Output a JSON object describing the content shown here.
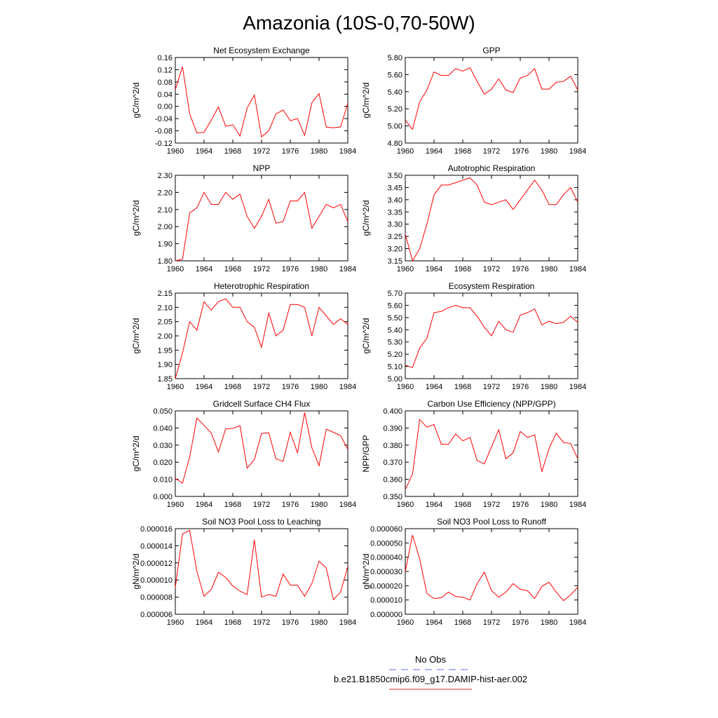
{
  "title": "Amazonia (10S-0,70-50W)",
  "legend": {
    "entries": [
      {
        "label": "No Obs",
        "color": "#6464ff",
        "dash": true
      },
      {
        "label": "b.e21.B1850cmip6.f09_g17.DAMIP-hist-aer.002",
        "color": "#e03030",
        "dash": false
      }
    ]
  },
  "chart_data": [
    {
      "type": "line",
      "title": "Net Ecosystem Exchange",
      "ylabel": "gC/m^2/d",
      "xlabel": "",
      "ylim": [
        -0.12,
        0.16
      ],
      "yticks": [
        -0.12,
        -0.08,
        -0.04,
        0.0,
        0.04,
        0.08,
        0.12,
        0.16
      ],
      "ytick_labels": [
        "-0.12",
        "-0.08",
        "-0.04",
        "0.00",
        "0.04",
        "0.08",
        "0.12",
        "0.16"
      ],
      "xlim": [
        1960,
        1984
      ],
      "xticks": [
        1960,
        1964,
        1968,
        1972,
        1976,
        1980,
        1984
      ],
      "x": [
        1960,
        1961,
        1962,
        1963,
        1964,
        1965,
        1966,
        1967,
        1968,
        1969,
        1970,
        1971,
        1972,
        1973,
        1974,
        1975,
        1976,
        1977,
        1978,
        1979,
        1980,
        1981,
        1982,
        1983,
        1984
      ],
      "series": [
        {
          "color": "#ff0000",
          "values": [
            0.055,
            0.13,
            -0.025,
            -0.087,
            -0.085,
            -0.045,
            -0.002,
            -0.065,
            -0.06,
            -0.097,
            -0.005,
            0.037,
            -0.1,
            -0.08,
            -0.025,
            -0.012,
            -0.047,
            -0.04,
            -0.095,
            0.012,
            0.042,
            -0.068,
            -0.07,
            -0.067,
            0.01
          ]
        }
      ]
    },
    {
      "type": "line",
      "title": "GPP",
      "ylabel": "gC/m^2/d",
      "xlabel": "",
      "ylim": [
        4.8,
        5.8
      ],
      "yticks": [
        4.8,
        5.0,
        5.2,
        5.4,
        5.6,
        5.8
      ],
      "ytick_labels": [
        "4.80",
        "5.00",
        "5.20",
        "5.40",
        "5.60",
        "5.80"
      ],
      "xlim": [
        1960,
        1984
      ],
      "xticks": [
        1960,
        1964,
        1968,
        1972,
        1976,
        1980,
        1984
      ],
      "x": [
        1960,
        1961,
        1962,
        1963,
        1964,
        1965,
        1966,
        1967,
        1968,
        1969,
        1970,
        1971,
        1972,
        1973,
        1974,
        1975,
        1976,
        1977,
        1978,
        1979,
        1980,
        1981,
        1982,
        1983,
        1984
      ],
      "series": [
        {
          "color": "#ff0000",
          "values": [
            5.07,
            4.96,
            5.28,
            5.42,
            5.63,
            5.59,
            5.59,
            5.67,
            5.64,
            5.68,
            5.52,
            5.37,
            5.43,
            5.55,
            5.42,
            5.39,
            5.56,
            5.59,
            5.67,
            5.43,
            5.43,
            5.51,
            5.52,
            5.58,
            5.42
          ]
        }
      ]
    },
    {
      "type": "line",
      "title": "NPP",
      "ylabel": "gC/m^2/d",
      "xlabel": "",
      "ylim": [
        1.8,
        2.3
      ],
      "yticks": [
        1.8,
        1.9,
        2.0,
        2.1,
        2.2,
        2.3
      ],
      "ytick_labels": [
        "1.80",
        "1.90",
        "2.00",
        "2.10",
        "2.20",
        "2.30"
      ],
      "xlim": [
        1960,
        1984
      ],
      "xticks": [
        1960,
        1964,
        1968,
        1972,
        1976,
        1980,
        1984
      ],
      "x": [
        1960,
        1961,
        1962,
        1963,
        1964,
        1965,
        1966,
        1967,
        1968,
        1969,
        1970,
        1971,
        1972,
        1973,
        1974,
        1975,
        1976,
        1977,
        1978,
        1979,
        1980,
        1981,
        1982,
        1983,
        1984
      ],
      "series": [
        {
          "color": "#ff0000",
          "values": [
            1.8,
            1.81,
            2.08,
            2.11,
            2.2,
            2.13,
            2.13,
            2.2,
            2.16,
            2.19,
            2.06,
            1.99,
            2.06,
            2.16,
            2.02,
            2.03,
            2.15,
            2.15,
            2.2,
            1.99,
            2.06,
            2.13,
            2.11,
            2.13,
            2.03
          ]
        }
      ]
    },
    {
      "type": "line",
      "title": "Autotrophic Respiration",
      "ylabel": "gC/m^2/d",
      "xlabel": "",
      "ylim": [
        3.15,
        3.5
      ],
      "yticks": [
        3.15,
        3.2,
        3.25,
        3.3,
        3.35,
        3.4,
        3.45,
        3.5
      ],
      "ytick_labels": [
        "3.15",
        "3.20",
        "3.25",
        "3.30",
        "3.35",
        "3.40",
        "3.45",
        "3.50"
      ],
      "xlim": [
        1960,
        1984
      ],
      "xticks": [
        1960,
        1964,
        1968,
        1972,
        1976,
        1980,
        1984
      ],
      "x": [
        1960,
        1961,
        1962,
        1963,
        1964,
        1965,
        1966,
        1967,
        1968,
        1969,
        1970,
        1971,
        1972,
        1973,
        1974,
        1975,
        1976,
        1977,
        1978,
        1979,
        1980,
        1981,
        1982,
        1983,
        1984
      ],
      "series": [
        {
          "color": "#ff0000",
          "values": [
            3.26,
            3.15,
            3.2,
            3.3,
            3.42,
            3.46,
            3.46,
            3.47,
            3.48,
            3.49,
            3.46,
            3.39,
            3.38,
            3.39,
            3.4,
            3.36,
            3.4,
            3.44,
            3.48,
            3.44,
            3.38,
            3.38,
            3.42,
            3.45,
            3.39
          ]
        }
      ]
    },
    {
      "type": "line",
      "title": "Heterotrophic Respiration",
      "ylabel": "gC/m^2/d",
      "xlabel": "",
      "ylim": [
        1.85,
        2.15
      ],
      "yticks": [
        1.85,
        1.9,
        1.95,
        2.0,
        2.05,
        2.1,
        2.15
      ],
      "ytick_labels": [
        "1.85",
        "1.90",
        "1.95",
        "2.00",
        "2.05",
        "2.10",
        "2.15"
      ],
      "xlim": [
        1960,
        1984
      ],
      "xticks": [
        1960,
        1964,
        1968,
        1972,
        1976,
        1980,
        1984
      ],
      "x": [
        1960,
        1961,
        1962,
        1963,
        1964,
        1965,
        1966,
        1967,
        1968,
        1969,
        1970,
        1971,
        1972,
        1973,
        1974,
        1975,
        1976,
        1977,
        1978,
        1979,
        1980,
        1981,
        1982,
        1983,
        1984
      ],
      "series": [
        {
          "color": "#ff0000",
          "values": [
            1.85,
            1.94,
            2.05,
            2.02,
            2.12,
            2.09,
            2.12,
            2.13,
            2.1,
            2.1,
            2.05,
            2.03,
            1.96,
            2.08,
            2.0,
            2.02,
            2.11,
            2.11,
            2.1,
            2.0,
            2.1,
            2.07,
            2.04,
            2.06,
            2.04
          ]
        }
      ]
    },
    {
      "type": "line",
      "title": "Ecosystem Respiration",
      "ylabel": "gC/m^2/d",
      "xlabel": "",
      "ylim": [
        5.0,
        5.7
      ],
      "yticks": [
        5.0,
        5.1,
        5.2,
        5.3,
        5.4,
        5.5,
        5.6,
        5.7
      ],
      "ytick_labels": [
        "5.00",
        "5.10",
        "5.20",
        "5.30",
        "5.40",
        "5.50",
        "5.60",
        "5.70"
      ],
      "xlim": [
        1960,
        1984
      ],
      "xticks": [
        1960,
        1964,
        1968,
        1972,
        1976,
        1980,
        1984
      ],
      "x": [
        1960,
        1961,
        1962,
        1963,
        1964,
        1965,
        1966,
        1967,
        1968,
        1969,
        1970,
        1971,
        1972,
        1973,
        1974,
        1975,
        1976,
        1977,
        1978,
        1979,
        1980,
        1981,
        1982,
        1983,
        1984
      ],
      "series": [
        {
          "color": "#ff0000",
          "values": [
            5.11,
            5.09,
            5.25,
            5.33,
            5.54,
            5.55,
            5.58,
            5.6,
            5.58,
            5.58,
            5.51,
            5.42,
            5.35,
            5.47,
            5.4,
            5.38,
            5.52,
            5.54,
            5.57,
            5.44,
            5.47,
            5.45,
            5.46,
            5.51,
            5.46
          ]
        }
      ]
    },
    {
      "type": "line",
      "title": "Gridcell Surface CH4 Flux",
      "ylabel": "gC/m^2/d",
      "xlabel": "",
      "ylim": [
        0.0,
        0.05
      ],
      "yticks": [
        0.0,
        0.01,
        0.02,
        0.03,
        0.04,
        0.05
      ],
      "ytick_labels": [
        "0.000",
        "0.010",
        "0.020",
        "0.030",
        "0.040",
        "0.050"
      ],
      "xlim": [
        1960,
        1984
      ],
      "xticks": [
        1960,
        1964,
        1968,
        1972,
        1976,
        1980,
        1984
      ],
      "x": [
        1960,
        1961,
        1962,
        1963,
        1964,
        1965,
        1966,
        1967,
        1968,
        1969,
        1970,
        1971,
        1972,
        1973,
        1974,
        1975,
        1976,
        1977,
        1978,
        1979,
        1980,
        1981,
        1982,
        1983,
        1984
      ],
      "series": [
        {
          "color": "#ff0000",
          "values": [
            0.0105,
            0.0078,
            0.023,
            0.0458,
            0.0415,
            0.037,
            0.026,
            0.0395,
            0.0398,
            0.0413,
            0.0165,
            0.0215,
            0.0368,
            0.0372,
            0.022,
            0.0205,
            0.0375,
            0.0255,
            0.049,
            0.0285,
            0.018,
            0.0393,
            0.0375,
            0.0355,
            0.0275
          ]
        }
      ]
    },
    {
      "type": "line",
      "title": "Carbon Use Efficiency (NPP/GPP)",
      "ylabel": "NPP/GPP",
      "xlabel": "",
      "ylim": [
        0.35,
        0.4
      ],
      "yticks": [
        0.35,
        0.36,
        0.37,
        0.38,
        0.39,
        0.4
      ],
      "ytick_labels": [
        "0.350",
        "0.360",
        "0.370",
        "0.380",
        "0.390",
        "0.400"
      ],
      "xlim": [
        1960,
        1984
      ],
      "xticks": [
        1960,
        1964,
        1968,
        1972,
        1976,
        1980,
        1984
      ],
      "x": [
        1960,
        1961,
        1962,
        1963,
        1964,
        1965,
        1966,
        1967,
        1968,
        1969,
        1970,
        1971,
        1972,
        1973,
        1974,
        1975,
        1976,
        1977,
        1978,
        1979,
        1980,
        1981,
        1982,
        1983,
        1984
      ],
      "series": [
        {
          "color": "#ff0000",
          "values": [
            0.354,
            0.363,
            0.395,
            0.3905,
            0.392,
            0.3805,
            0.3805,
            0.3865,
            0.3825,
            0.3845,
            0.371,
            0.369,
            0.379,
            0.389,
            0.372,
            0.3755,
            0.388,
            0.3845,
            0.386,
            0.3645,
            0.378,
            0.387,
            0.3815,
            0.381,
            0.372
          ]
        }
      ]
    },
    {
      "type": "line",
      "title": "Soil NO3 Pool Loss to Leaching",
      "ylabel": "gN/m^2/d",
      "xlabel": "",
      "ylim": [
        6e-06,
        1.6e-05
      ],
      "yticks": [
        6e-06,
        8e-06,
        1e-05,
        1.2e-05,
        1.4e-05,
        1.6e-05
      ],
      "ytick_labels": [
        "0.000006",
        "0.000008",
        "0.000010",
        "0.000012",
        "0.000014",
        "0.000016"
      ],
      "xlim": [
        1960,
        1984
      ],
      "xticks": [
        1960,
        1964,
        1968,
        1972,
        1976,
        1980,
        1984
      ],
      "x": [
        1960,
        1961,
        1962,
        1963,
        1964,
        1965,
        1966,
        1967,
        1968,
        1969,
        1970,
        1971,
        1972,
        1973,
        1974,
        1975,
        1976,
        1977,
        1978,
        1979,
        1980,
        1981,
        1982,
        1983,
        1984
      ],
      "series": [
        {
          "color": "#ff0000",
          "values": [
            9.1e-06,
            1.54e-05,
            1.58e-05,
            1.1e-05,
            8.1e-06,
            8.9e-06,
            1.09e-05,
            1.03e-05,
            9.3e-06,
            8.7e-06,
            8.3e-06,
            1.47e-05,
            8e-06,
            8.3e-06,
            8.1e-06,
            1.07e-05,
            9.4e-06,
            9.4e-06,
            8.1e-06,
            9.6e-06,
            1.22e-05,
            1.14e-05,
            7.7e-06,
            8.6e-06,
            1.16e-05
          ]
        }
      ]
    },
    {
      "type": "line",
      "title": "Soil NO3 Pool Loss to Runoff",
      "ylabel": "gN/m^2/d",
      "xlabel": "",
      "ylim": [
        0.0,
        6e-05
      ],
      "yticks": [
        0.0,
        1e-05,
        2e-05,
        3e-05,
        4e-05,
        5e-05,
        6e-05
      ],
      "ytick_labels": [
        "0.000000",
        "0.000010",
        "0.000020",
        "0.000030",
        "0.000040",
        "0.000050",
        "0.000060"
      ],
      "xlim": [
        1960,
        1984
      ],
      "xticks": [
        1960,
        1964,
        1968,
        1972,
        1976,
        1980,
        1984
      ],
      "x": [
        1960,
        1961,
        1962,
        1963,
        1964,
        1965,
        1966,
        1967,
        1968,
        1969,
        1970,
        1971,
        1972,
        1973,
        1974,
        1975,
        1976,
        1977,
        1978,
        1979,
        1980,
        1981,
        1982,
        1983,
        1984
      ],
      "series": [
        {
          "color": "#ff0000",
          "values": [
            3e-05,
            5.55e-05,
            3.9e-05,
            1.45e-05,
            1.1e-05,
            1.15e-05,
            1.55e-05,
            1.25e-05,
            1.2e-05,
            1e-05,
            2.15e-05,
            2.95e-05,
            1.65e-05,
            1.2e-05,
            1.55e-05,
            2.15e-05,
            1.75e-05,
            1.65e-05,
            1.1e-05,
            1.95e-05,
            2.25e-05,
            1.55e-05,
            9.5e-06,
            1.35e-05,
            1.9e-05
          ]
        }
      ]
    }
  ]
}
